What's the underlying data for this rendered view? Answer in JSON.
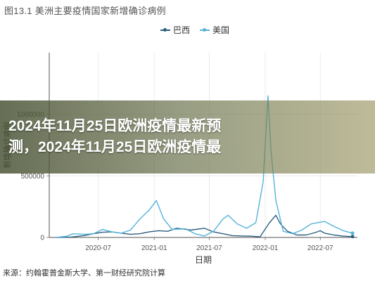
{
  "figure_title": "图13.1 美洲主要疫情国家新增确诊病例",
  "overlay_headline": [
    "2024年11月25日欧洲疫情最新预",
    "测，2024年11月25日欧洲疫情最"
  ],
  "source_note": "来源：约翰霍普金斯大学、第一财经研究院计算",
  "chart_data": {
    "type": "line",
    "title": "图13.1 美洲主要疫情国家新增确诊病例",
    "xlabel": "日期",
    "ylabel": "新增确诊病例",
    "x_tick_labels": [
      "2020-07",
      "2021-01",
      "2021-07",
      "2022-01",
      "2022-07"
    ],
    "y_tick_labels": [
      "0",
      "500000",
      "1000000"
    ],
    "y_ticks": [
      0,
      500000,
      1000000
    ],
    "ylim": [
      0,
      1500000
    ],
    "xlim": [
      "2020-01-22",
      "2022-10-31"
    ],
    "grid": true,
    "legend_position": "top",
    "series": [
      {
        "name": "巴西",
        "color": "#2e5f7f",
        "points": [
          [
            "2020-02-15",
            0
          ],
          [
            "2020-04-01",
            2000
          ],
          [
            "2020-05-15",
            15000
          ],
          [
            "2020-06-15",
            30000
          ],
          [
            "2020-07-15",
            42000
          ],
          [
            "2020-08-15",
            45000
          ],
          [
            "2020-09-15",
            35000
          ],
          [
            "2020-10-15",
            25000
          ],
          [
            "2020-11-15",
            30000
          ],
          [
            "2020-12-15",
            45000
          ],
          [
            "2021-01-15",
            55000
          ],
          [
            "2021-02-15",
            50000
          ],
          [
            "2021-03-15",
            75000
          ],
          [
            "2021-04-01",
            70000
          ],
          [
            "2021-05-01",
            60000
          ],
          [
            "2021-06-15",
            75000
          ],
          [
            "2021-07-15",
            45000
          ],
          [
            "2021-08-15",
            30000
          ],
          [
            "2021-09-15",
            15000
          ],
          [
            "2021-10-15",
            12000
          ],
          [
            "2021-11-15",
            10000
          ],
          [
            "2021-12-15",
            5000
          ],
          [
            "2022-01-15",
            120000
          ],
          [
            "2022-02-05",
            180000
          ],
          [
            "2022-02-20",
            110000
          ],
          [
            "2022-03-15",
            50000
          ],
          [
            "2022-04-15",
            20000
          ],
          [
            "2022-05-15",
            20000
          ],
          [
            "2022-06-15",
            40000
          ],
          [
            "2022-07-01",
            55000
          ],
          [
            "2022-07-15",
            35000
          ],
          [
            "2022-08-15",
            20000
          ],
          [
            "2022-09-15",
            10000
          ],
          [
            "2022-10-15",
            7000
          ]
        ]
      },
      {
        "name": "美国",
        "color": "#54b3d9",
        "points": [
          [
            "2020-02-15",
            0
          ],
          [
            "2020-03-20",
            10000
          ],
          [
            "2020-04-10",
            30000
          ],
          [
            "2020-05-15",
            25000
          ],
          [
            "2020-06-15",
            30000
          ],
          [
            "2020-07-15",
            65000
          ],
          [
            "2020-08-15",
            45000
          ],
          [
            "2020-09-15",
            35000
          ],
          [
            "2020-10-15",
            60000
          ],
          [
            "2020-11-15",
            150000
          ],
          [
            "2020-12-15",
            220000
          ],
          [
            "2021-01-08",
            300000
          ],
          [
            "2021-02-01",
            150000
          ],
          [
            "2021-03-01",
            65000
          ],
          [
            "2021-04-15",
            70000
          ],
          [
            "2021-05-15",
            30000
          ],
          [
            "2021-06-15",
            12000
          ],
          [
            "2021-07-15",
            50000
          ],
          [
            "2021-08-15",
            150000
          ],
          [
            "2021-09-01",
            180000
          ],
          [
            "2021-10-01",
            110000
          ],
          [
            "2021-11-01",
            75000
          ],
          [
            "2021-12-01",
            120000
          ],
          [
            "2021-12-25",
            450000
          ],
          [
            "2022-01-10",
            1150000
          ],
          [
            "2022-01-20",
            700000
          ],
          [
            "2022-02-05",
            300000
          ],
          [
            "2022-03-01",
            50000
          ],
          [
            "2022-04-01",
            30000
          ],
          [
            "2022-05-01",
            60000
          ],
          [
            "2022-06-01",
            110000
          ],
          [
            "2022-07-15",
            130000
          ],
          [
            "2022-08-15",
            90000
          ],
          [
            "2022-09-15",
            55000
          ],
          [
            "2022-10-15",
            35000
          ]
        ]
      }
    ]
  }
}
